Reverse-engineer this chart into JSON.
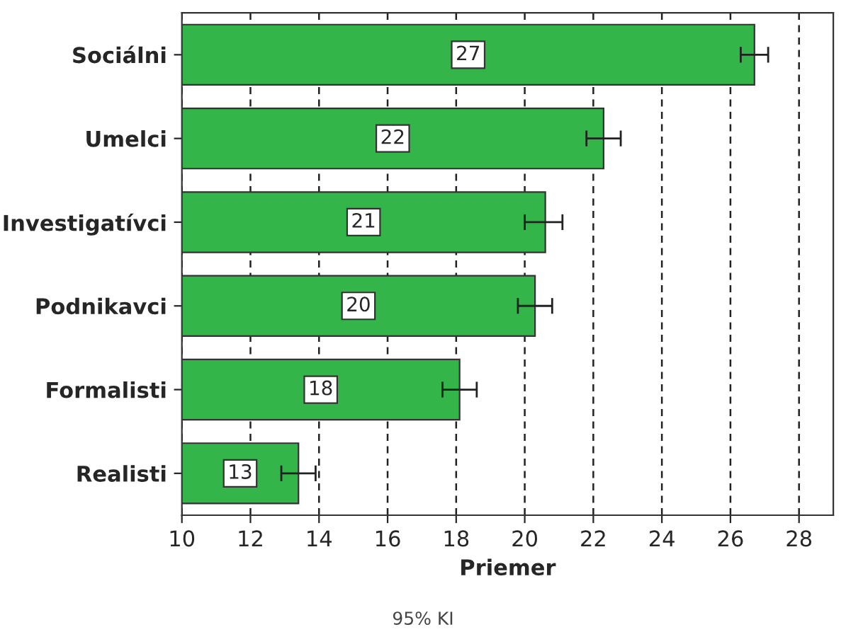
{
  "chart_data": {
    "type": "bar",
    "orientation": "horizontal",
    "xlabel": "Priemer",
    "categories": [
      "Sociálni",
      "Umelci",
      "Investigatívci",
      "Podnikavci",
      "Formalisti",
      "Realisti"
    ],
    "values": [
      26.7,
      22.3,
      20.6,
      20.3,
      18.1,
      13.4
    ],
    "errors": [
      [
        26.3,
        27.1
      ],
      [
        21.8,
        22.8
      ],
      [
        20.0,
        21.1
      ],
      [
        19.8,
        20.8
      ],
      [
        17.6,
        18.6
      ],
      [
        12.9,
        13.9
      ]
    ],
    "value_labels": [
      "27",
      "22",
      "21",
      "20",
      "18",
      "13"
    ],
    "color": "#33b54a",
    "xlim": [
      10,
      29
    ],
    "xticks": [
      10,
      12,
      14,
      16,
      18,
      20,
      22,
      24,
      26,
      28
    ],
    "grid": "x",
    "annotations": [
      "95% KI"
    ]
  }
}
